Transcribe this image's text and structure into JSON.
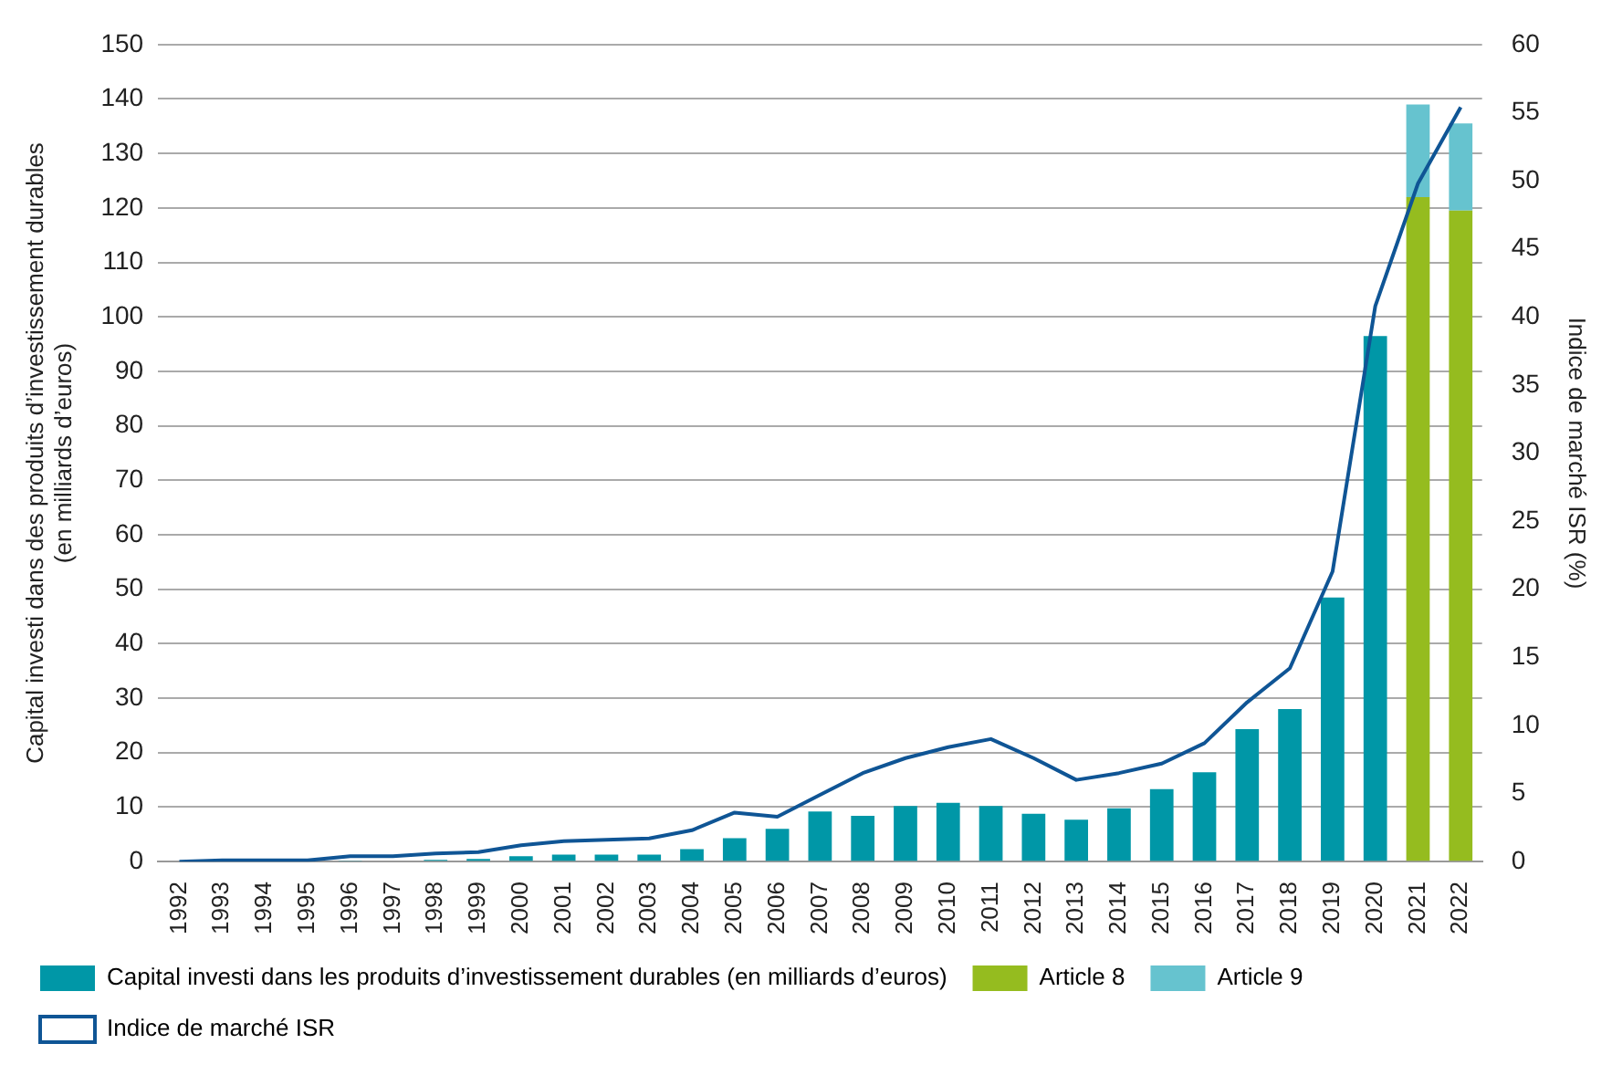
{
  "chart_data": {
    "type": "bar",
    "stacked": true,
    "ylabel": "Capital investi dans des produits d’investissement durables\n(en milliards d’euros)",
    "y2label": "Indice de marché ISR (%)",
    "categories": [
      "1992",
      "1993",
      "1994",
      "1995",
      "1996",
      "1997",
      "1998",
      "1999",
      "2000",
      "2001",
      "2002",
      "2003",
      "2004",
      "2005",
      "2006",
      "2007",
      "2008",
      "2009",
      "2010",
      "2011",
      "2012",
      "2013",
      "2014",
      "2015",
      "2016",
      "2017",
      "2018",
      "2019",
      "2020",
      "2021",
      "2022"
    ],
    "series": [
      {
        "name": "Capital investi dans les produits d’investissement durables (en milliards d’euros)",
        "color": "#0097a7",
        "values": [
          0,
          0,
          0,
          0,
          0.1,
          null,
          0.3,
          0.5,
          1,
          1.3,
          1.3,
          1.3,
          2.3,
          4.3,
          6,
          9.2,
          8.4,
          10.2,
          10.8,
          10.2,
          8.8,
          7.7,
          9.8,
          13.3,
          16.4,
          24.3,
          28,
          48.5,
          96.5,
          null,
          null
        ]
      },
      {
        "name": "Article 8",
        "color": "#95bc1f",
        "values": [
          null,
          null,
          null,
          null,
          null,
          null,
          null,
          null,
          null,
          null,
          null,
          null,
          null,
          null,
          null,
          null,
          null,
          null,
          null,
          null,
          null,
          null,
          null,
          null,
          null,
          null,
          null,
          null,
          null,
          122,
          119.5
        ]
      },
      {
        "name": "Article 9",
        "color": "#66c3cf",
        "values": [
          null,
          null,
          null,
          null,
          null,
          null,
          null,
          null,
          null,
          null,
          null,
          null,
          null,
          null,
          null,
          null,
          null,
          null,
          null,
          null,
          null,
          null,
          null,
          null,
          null,
          null,
          null,
          null,
          null,
          17,
          16
        ]
      },
      {
        "name": "Indice de marché ISR",
        "type": "line",
        "axis": "y2",
        "color": "#0f5595",
        "values": [
          0,
          0.1,
          0.1,
          0.1,
          0.4,
          0.4,
          0.6,
          0.7,
          1.2,
          1.5,
          1.6,
          1.7,
          2.3,
          3.6,
          3.3,
          4.9,
          6.5,
          7.6,
          8.4,
          9.0,
          7.6,
          6.0,
          6.5,
          7.2,
          8.7,
          11.7,
          14.2,
          21.3,
          40.8,
          49.8,
          55.4
        ]
      }
    ],
    "ylim": [
      0,
      150
    ],
    "yticks": [
      0,
      10,
      20,
      30,
      40,
      50,
      60,
      70,
      80,
      90,
      100,
      110,
      120,
      130,
      140,
      150
    ],
    "y2lim": [
      0,
      60
    ],
    "y2ticks": [
      0,
      5,
      10,
      15,
      20,
      25,
      30,
      35,
      40,
      45,
      50,
      55,
      60
    ],
    "grid": "y",
    "legend": "bottom",
    "marker": "none",
    "line_style": "solid"
  }
}
